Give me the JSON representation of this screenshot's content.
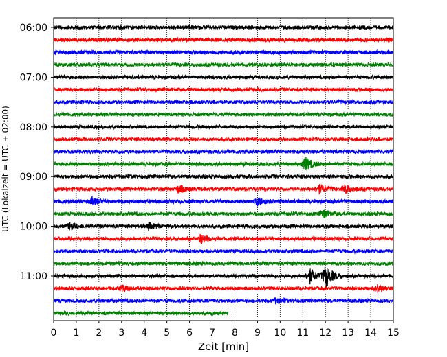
{
  "chart_data": {
    "type": "line",
    "title": "",
    "xlabel": "Zeit  [min]",
    "ylabel": "UTC (Lokalzeit = UTC + 02:00)",
    "xlim": [
      0,
      15
    ],
    "x_ticks": [
      "0",
      "1",
      "2",
      "3",
      "4",
      "5",
      "6",
      "7",
      "8",
      "9",
      "10",
      "11",
      "12",
      "13",
      "14",
      "15"
    ],
    "y_tick_labels": [
      "06:00",
      "07:00",
      "08:00",
      "09:00",
      "10:00",
      "11:00"
    ],
    "y_tick_rows": [
      0,
      4,
      8,
      12,
      16,
      20
    ],
    "rows_per_hour": 4,
    "minutes_per_row": 15,
    "grid_x": true,
    "grid_style": "dotted",
    "colors": [
      "#000000",
      "#ff0000",
      "#0000ff",
      "#008000"
    ],
    "last_row_end_minute": 7.7,
    "events": [
      {
        "row": 11,
        "minute": 11.1,
        "amplitude": 0.55
      },
      {
        "row": 13,
        "minute": 11.7,
        "amplitude": 0.35
      },
      {
        "row": 13,
        "minute": 12.9,
        "amplitude": 0.3
      },
      {
        "row": 13,
        "minute": 5.5,
        "amplitude": 0.3
      },
      {
        "row": 14,
        "minute": 9.0,
        "amplitude": 0.3
      },
      {
        "row": 14,
        "minute": 1.7,
        "amplitude": 0.25
      },
      {
        "row": 15,
        "minute": 11.9,
        "amplitude": 0.3
      },
      {
        "row": 16,
        "minute": 0.7,
        "amplitude": 0.25
      },
      {
        "row": 16,
        "minute": 4.2,
        "amplitude": 0.25
      },
      {
        "row": 17,
        "minute": 6.5,
        "amplitude": 0.35
      },
      {
        "row": 20,
        "minute": 11.3,
        "amplitude": 0.6
      },
      {
        "row": 20,
        "minute": 12.0,
        "amplitude": 0.95
      },
      {
        "row": 21,
        "minute": 3.0,
        "amplitude": 0.25
      },
      {
        "row": 21,
        "minute": 14.3,
        "amplitude": 0.25
      },
      {
        "row": 22,
        "minute": 9.8,
        "amplitude": 0.2
      }
    ]
  }
}
